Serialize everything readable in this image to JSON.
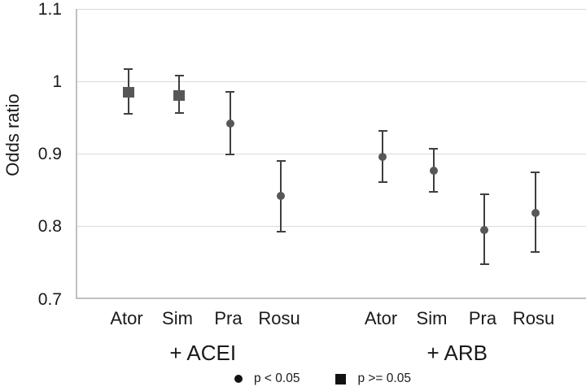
{
  "chart_data": {
    "type": "scatter",
    "subtype": "point-estimates-with-error-bars",
    "title": "",
    "ylabel": "Odds ratio",
    "xlabel": "",
    "ylim": [
      0.7,
      1.1
    ],
    "yticks": [
      {
        "label": "1.1",
        "value": 1.1
      },
      {
        "label": "1",
        "value": 1.0
      },
      {
        "label": "0.9",
        "value": 0.9
      },
      {
        "label": "0.8",
        "value": 0.8
      },
      {
        "label": "0.7",
        "value": 0.7
      }
    ],
    "grid": "horizontal-light",
    "legend_position": "bottom-center",
    "groups": [
      {
        "label": "+ ACEI",
        "points": [
          {
            "category": "Ator",
            "or": 0.985,
            "ci_low": 0.955,
            "ci_high": 1.017,
            "marker": "square",
            "significance": "p >= 0.05"
          },
          {
            "category": "Sim",
            "or": 0.981,
            "ci_low": 0.956,
            "ci_high": 1.008,
            "marker": "square",
            "significance": "p >= 0.05"
          },
          {
            "category": "Pra",
            "or": 0.942,
            "ci_low": 0.899,
            "ci_high": 0.986,
            "marker": "circle",
            "significance": "p < 0.05"
          },
          {
            "category": "Rosu",
            "or": 0.842,
            "ci_low": 0.793,
            "ci_high": 0.89,
            "marker": "circle",
            "significance": "p < 0.05"
          }
        ]
      },
      {
        "label": "+ ARB",
        "points": [
          {
            "category": "Ator",
            "or": 0.896,
            "ci_low": 0.861,
            "ci_high": 0.932,
            "marker": "circle",
            "significance": "p < 0.05"
          },
          {
            "category": "Sim",
            "or": 0.877,
            "ci_low": 0.847,
            "ci_high": 0.907,
            "marker": "circle",
            "significance": "p < 0.05"
          },
          {
            "category": "Pra",
            "or": 0.795,
            "ci_low": 0.748,
            "ci_high": 0.844,
            "marker": "circle",
            "significance": "p < 0.05"
          },
          {
            "category": "Rosu",
            "or": 0.818,
            "ci_low": 0.765,
            "ci_high": 0.874,
            "marker": "circle",
            "significance": "p < 0.05"
          }
        ]
      }
    ],
    "legend": [
      {
        "marker": "circle",
        "label": "p < 0.05"
      },
      {
        "marker": "square",
        "label": "p >= 0.05"
      }
    ],
    "colors": {
      "marker": "#575757",
      "error_bar": "#3f3f3f",
      "gridline": "#dadada",
      "axis_line": "#c0c0c0",
      "text": "#1a1a1a",
      "legend_marker": "#121212"
    }
  }
}
